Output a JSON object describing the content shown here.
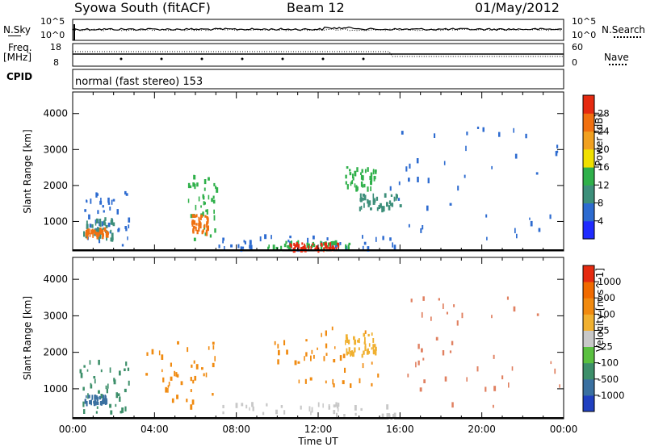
{
  "header": {
    "station": "Syowa South (fitACF)",
    "beam": "Beam 12",
    "date": "01/May/2012"
  },
  "strip_panels": {
    "nsky_label": "N.Sky",
    "nsearch_label": "N.Search",
    "noise_tick_top": "10^5",
    "noise_tick_bottom": "10^0",
    "freq_label": "Freq.",
    "freq_unit": "[MHz]",
    "freq_tick_top": "18",
    "freq_tick_bottom": "8",
    "nave_label": "Nave",
    "nave_tick_top": "60",
    "nave_tick_bottom": "0",
    "cpid_label": "CPID",
    "cpid_value": "normal (fast stereo) 153"
  },
  "chart_data": [
    {
      "type": "heatmap",
      "panel": "power",
      "ylabel": "Slant Range [km]",
      "xlabel": "",
      "ylim": [
        180,
        4600
      ],
      "xlim": [
        0,
        24
      ],
      "y_ticks": [
        "1000",
        "2000",
        "3000",
        "4000"
      ],
      "colorbar_label": "Power [dB]",
      "colorbar_ticks": [
        "4",
        "8",
        "12",
        "16",
        "20",
        "24",
        "28"
      ],
      "colorbar_colors": [
        "#1f2bff",
        "#2d6bd0",
        "#3d8f7a",
        "#2fb04a",
        "#f0e000",
        "#f0a020",
        "#f07010",
        "#e52a10"
      ],
      "regions": [
        {
          "x": [
            0.3,
            2.8
          ],
          "y": [
            300,
            1800
          ],
          "color": "#2d6bd0"
        },
        {
          "x": [
            0.5,
            2.0
          ],
          "y": [
            500,
            1100
          ],
          "color": "#3d8f7a"
        },
        {
          "x": [
            0.6,
            1.8
          ],
          "y": [
            600,
            800
          ],
          "color": "#f07010"
        },
        {
          "x": [
            5.6,
            7.0
          ],
          "y": [
            500,
            2300
          ],
          "color": "#2fb04a"
        },
        {
          "x": [
            5.8,
            6.6
          ],
          "y": [
            700,
            1200
          ],
          "color": "#f07010"
        },
        {
          "x": [
            7.0,
            15.7
          ],
          "y": [
            250,
            600
          ],
          "color": "#2d6bd0"
        },
        {
          "x": [
            9.5,
            13.5
          ],
          "y": [
            250,
            450
          ],
          "color": "#2fb04a"
        },
        {
          "x": [
            10.5,
            13.0
          ],
          "y": [
            230,
            380
          ],
          "color": "#e52a10"
        },
        {
          "x": [
            13.3,
            14.8
          ],
          "y": [
            1900,
            2500
          ],
          "color": "#2fb04a"
        },
        {
          "x": [
            14.0,
            16.0
          ],
          "y": [
            1300,
            1800
          ],
          "color": "#3d8f7a"
        },
        {
          "x": [
            15.5,
            23.8
          ],
          "y": [
            500,
            3600
          ],
          "color": "#2d6bd0"
        }
      ]
    },
    {
      "type": "heatmap",
      "panel": "velocity",
      "ylabel": "Slant Range [km]",
      "xlabel": "Time UT",
      "ylim": [
        180,
        4600
      ],
      "xlim": [
        0,
        24
      ],
      "x_ticks": [
        "00:00",
        "04:00",
        "08:00",
        "12:00",
        "16:00",
        "20:00",
        "00:00"
      ],
      "y_ticks": [
        "1000",
        "2000",
        "3000",
        "4000"
      ],
      "colorbar_label": "Velocity [m s^-1]",
      "colorbar_ticks": [
        "1000",
        "500",
        "100",
        "25",
        "-25",
        "-100",
        "-500",
        "-1000"
      ],
      "colorbar_colors": [
        "#2040c0",
        "#3a70a0",
        "#3d8f6a",
        "#5ac040",
        "#c8c8c8",
        "#f0b030",
        "#f08a10",
        "#f06a00",
        "#e52a10"
      ],
      "regions": [
        {
          "x": [
            0.3,
            2.8
          ],
          "y": [
            300,
            1800
          ],
          "color": "#3d8f6a"
        },
        {
          "x": [
            0.5,
            1.6
          ],
          "y": [
            600,
            800
          ],
          "color": "#3a70a0"
        },
        {
          "x": [
            3.5,
            7.0
          ],
          "y": [
            500,
            2300
          ],
          "color": "#f08a10"
        },
        {
          "x": [
            7.0,
            15.7
          ],
          "y": [
            250,
            600
          ],
          "color": "#c8c8c8"
        },
        {
          "x": [
            9.5,
            15.0
          ],
          "y": [
            1100,
            2700
          ],
          "color": "#f08a10"
        },
        {
          "x": [
            13.3,
            14.8
          ],
          "y": [
            1900,
            2500
          ],
          "color": "#f0b030"
        },
        {
          "x": [
            15.5,
            23.8
          ],
          "y": [
            500,
            3600
          ],
          "color": "#e08060"
        }
      ]
    }
  ]
}
